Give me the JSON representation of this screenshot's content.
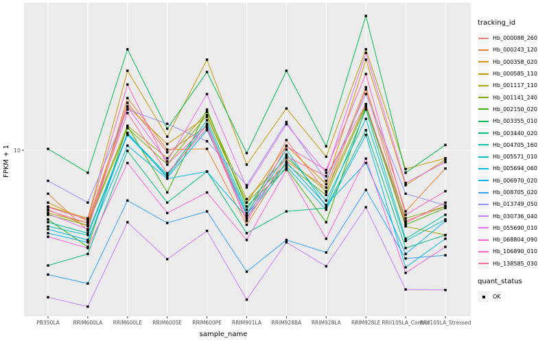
{
  "chart_data": {
    "type": "line",
    "title": "",
    "xlabel": "sample_name",
    "ylabel": "FPKM + 1",
    "y_axis": {
      "scale": "log10",
      "tick_labels": [
        "10"
      ],
      "tick_values": [
        10
      ]
    },
    "panel_bg": "#EBEBEB",
    "grid_color": "#FFFFFF",
    "axis_text_color": "#4D4D4D",
    "point_color": "#000000",
    "point_marker": "filled-square",
    "legend_position": "right",
    "x_categories": [
      "PB350LA",
      "RRIM600LA",
      "RRIM600LE",
      "RRIM600SE",
      "RRIM600PE",
      "RRIM901LA",
      "RRIM928BA",
      "RRIM928LA",
      "RRIM928LE",
      "RRII105LA_Control",
      "RRII105LA_Stressed"
    ],
    "series": [
      {
        "name": "Hb_000088_260",
        "color": "#F8766D",
        "values": [
          4.2,
          3.3,
          20.0,
          9.7,
          14.2,
          3.85,
          11.6,
          5.4,
          24.3,
          3.56,
          4.4
        ]
      },
      {
        "name": "Hb_000243_120",
        "color": "#EA8331",
        "values": [
          5.3,
          3.1,
          21.4,
          10.1,
          10.2,
          3.37,
          8.5,
          5.8,
          25.1,
          4.1,
          7.66
        ]
      },
      {
        "name": "Hb_000358_020",
        "color": "#D89000",
        "values": [
          4.66,
          3.56,
          19.0,
          10.95,
          16.3,
          4.66,
          10.7,
          6.1,
          37.5,
          6.0,
          8.7
        ]
      },
      {
        "name": "Hb_000585_110",
        "color": "#C09B00",
        "values": [
          4.4,
          3.7,
          31.9,
          12.2,
          37.5,
          8.1,
          18.4,
          9.1,
          43.6,
          7.6,
          8.9
        ]
      },
      {
        "name": "Hb_001117_110",
        "color": "#A3A500",
        "values": [
          4.0,
          3.46,
          14.3,
          8.9,
          17.5,
          4.9,
          8.9,
          5.5,
          19.6,
          3.29,
          2.9
        ]
      },
      {
        "name": "Hb_001141_240",
        "color": "#7CAE00",
        "values": [
          3.9,
          3.35,
          13.8,
          8.15,
          16.7,
          4.66,
          8.15,
          5.2,
          19.0,
          3.7,
          4.4
        ]
      },
      {
        "name": "Hb_002150_020",
        "color": "#39B600",
        "values": [
          3.64,
          2.44,
          14.2,
          5.4,
          18.1,
          4.4,
          7.66,
          3.5,
          18.8,
          3.37,
          4.3
        ]
      },
      {
        "name": "Hb_003355_010",
        "color": "#00BB4E",
        "values": [
          10.2,
          7.2,
          43.6,
          13.7,
          31.3,
          9.6,
          31.9,
          10.6,
          71.0,
          7.2,
          10.8
        ]
      },
      {
        "name": "Hb_003440_020",
        "color": "#00BF7D",
        "values": [
          1.86,
          2.2,
          9.9,
          4.66,
          7.33,
          2.98,
          4.1,
          4.3,
          13.4,
          2.4,
          2.9
        ]
      },
      {
        "name": "Hb_004705_160",
        "color": "#00C1A3",
        "values": [
          3.5,
          2.98,
          12.7,
          7.0,
          15.5,
          4.2,
          10.1,
          4.4,
          18.1,
          2.75,
          3.9
        ]
      },
      {
        "name": "Hb_005571_010",
        "color": "#00BFC4",
        "values": [
          3.29,
          2.9,
          12.5,
          6.85,
          14.7,
          4.0,
          9.4,
          4.8,
          15.8,
          2.66,
          3.64
        ]
      },
      {
        "name": "Hb_005694_060",
        "color": "#00BAE0",
        "values": [
          3.16,
          2.7,
          10.7,
          6.6,
          7.33,
          3.76,
          7.9,
          4.2,
          12.5,
          1.81,
          2.75
        ]
      },
      {
        "name": "Hb_006970_020",
        "color": "#00B0F6",
        "values": [
          2.98,
          2.61,
          12.9,
          6.7,
          13.4,
          3.9,
          8.4,
          4.5,
          8.3,
          2.2,
          3.56
        ]
      },
      {
        "name": "Hb_008705_020",
        "color": "#35A2FF",
        "values": [
          1.63,
          1.43,
          4.8,
          3.46,
          4.1,
          1.7,
          2.7,
          2.25,
          5.6,
          2.06,
          2.16
        ]
      },
      {
        "name": "Hb_013749_050",
        "color": "#9590FF",
        "values": [
          6.4,
          4.66,
          18.1,
          14.7,
          11.4,
          6.0,
          15.1,
          6.4,
          22.7,
          5.3,
          4.47
        ]
      },
      {
        "name": "Hb_030736_040",
        "color": "#C77CFF",
        "values": [
          1.17,
          1.02,
          3.5,
          2.04,
          3.08,
          1.13,
          2.61,
          1.84,
          4.35,
          1.31,
          1.3
        ]
      },
      {
        "name": "Hb_055690_010",
        "color": "#E76BF3",
        "values": [
          3.95,
          3.16,
          18.8,
          8.5,
          22.7,
          5.8,
          14.6,
          7.2,
          41.4,
          6.2,
          8.4
        ]
      },
      {
        "name": "Hb_068804_090",
        "color": "#FA62DB",
        "values": [
          2.83,
          2.4,
          8.3,
          4.0,
          5.4,
          2.7,
          7.5,
          2.75,
          8.85,
          1.67,
          2.44
        ]
      },
      {
        "name": "Hb_106890_010",
        "color": "#FF62BC",
        "values": [
          4.35,
          3.64,
          26.1,
          8.1,
          14.3,
          3.64,
          10.6,
          7.5,
          30.4,
          3.9,
          5.5
        ]
      },
      {
        "name": "Hb_138585_030",
        "color": "#FF6A98",
        "values": [
          4.15,
          3.46,
          17.2,
          7.15,
          13.8,
          3.56,
          9.1,
          6.85,
          19.6,
          3.46,
          4.66
        ]
      }
    ],
    "legend": {
      "series_title": "tracking_id",
      "quant_title": "quant_status",
      "quant_items": [
        {
          "label": "OK",
          "marker": "black-square"
        }
      ]
    }
  }
}
